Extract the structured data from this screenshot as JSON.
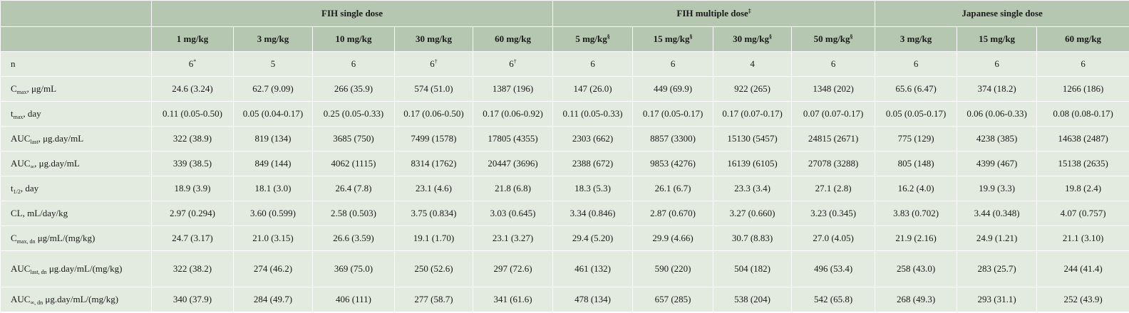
{
  "groups": [
    {
      "label": "FIH single dose",
      "sup": ""
    },
    {
      "label": "FIH multiple dose",
      "sup": "‡"
    },
    {
      "label": "Japanese single dose",
      "sup": ""
    }
  ],
  "doses": [
    {
      "label": "1 mg/kg",
      "sup": ""
    },
    {
      "label": "3 mg/kg",
      "sup": ""
    },
    {
      "label": "10 mg/kg",
      "sup": ""
    },
    {
      "label": "30 mg/kg",
      "sup": ""
    },
    {
      "label": "60 mg/kg",
      "sup": ""
    },
    {
      "label": "5 mg/kg",
      "sup": "§"
    },
    {
      "label": "15 mg/kg",
      "sup": "§"
    },
    {
      "label": "30 mg/kg",
      "sup": "§"
    },
    {
      "label": "50 mg/kg",
      "sup": "§"
    },
    {
      "label": "3 mg/kg",
      "sup": ""
    },
    {
      "label": "15 mg/kg",
      "sup": ""
    },
    {
      "label": "60 mg/kg",
      "sup": ""
    }
  ],
  "rows": [
    {
      "param": {
        "main": "n",
        "sub": "",
        "rest": ""
      },
      "cells": [
        {
          "v": "6",
          "sup": "*"
        },
        {
          "v": "5",
          "sup": ""
        },
        {
          "v": "6",
          "sup": ""
        },
        {
          "v": "6",
          "sup": "†"
        },
        {
          "v": "6",
          "sup": "†"
        },
        {
          "v": "6",
          "sup": ""
        },
        {
          "v": "6",
          "sup": ""
        },
        {
          "v": "4",
          "sup": ""
        },
        {
          "v": "6",
          "sup": ""
        },
        {
          "v": "6",
          "sup": ""
        },
        {
          "v": "6",
          "sup": ""
        },
        {
          "v": "6",
          "sup": ""
        }
      ]
    },
    {
      "param": {
        "main": "C",
        "sub": "max",
        "rest": ", μg/mL"
      },
      "cells": [
        {
          "v": "24.6 (3.24)",
          "sup": ""
        },
        {
          "v": "62.7 (9.09)",
          "sup": ""
        },
        {
          "v": "266 (35.9)",
          "sup": ""
        },
        {
          "v": "574 (51.0)",
          "sup": ""
        },
        {
          "v": "1387 (196)",
          "sup": ""
        },
        {
          "v": "147 (26.0)",
          "sup": ""
        },
        {
          "v": "449 (69.9)",
          "sup": ""
        },
        {
          "v": "922 (265)",
          "sup": ""
        },
        {
          "v": "1348 (202)",
          "sup": ""
        },
        {
          "v": "65.6 (6.47)",
          "sup": ""
        },
        {
          "v": "374 (18.2)",
          "sup": ""
        },
        {
          "v": "1266 (186)",
          "sup": ""
        }
      ]
    },
    {
      "param": {
        "main": "t",
        "sub": "max",
        "rest": ", day"
      },
      "cells": [
        {
          "v": "0.11 (0.05-0.50)",
          "sup": ""
        },
        {
          "v": "0.05 (0.04-0.17)",
          "sup": ""
        },
        {
          "v": "0.25 (0.05-0.33)",
          "sup": ""
        },
        {
          "v": "0.17 (0.06-0.50)",
          "sup": ""
        },
        {
          "v": "0.17 (0.06-0.92)",
          "sup": ""
        },
        {
          "v": "0.11 (0.05-0.33)",
          "sup": ""
        },
        {
          "v": "0.17 (0.05-0.17)",
          "sup": ""
        },
        {
          "v": "0.17 (0.07-0.17)",
          "sup": ""
        },
        {
          "v": "0.07 (0.07-0.17)",
          "sup": ""
        },
        {
          "v": "0.05 (0.05-0.17)",
          "sup": ""
        },
        {
          "v": "0.06 (0.06-0.33)",
          "sup": ""
        },
        {
          "v": "0.08 (0.08-0.17)",
          "sup": ""
        }
      ]
    },
    {
      "param": {
        "main": "AUC",
        "sub": "last",
        "rest": ", μg.day/mL"
      },
      "cells": [
        {
          "v": "322 (38.9)",
          "sup": ""
        },
        {
          "v": "819 (134)",
          "sup": ""
        },
        {
          "v": "3685 (750)",
          "sup": ""
        },
        {
          "v": "7499 (1578)",
          "sup": ""
        },
        {
          "v": "17805 (4355)",
          "sup": ""
        },
        {
          "v": "2303 (662)",
          "sup": ""
        },
        {
          "v": "8857 (3300)",
          "sup": ""
        },
        {
          "v": "15130 (5457)",
          "sup": ""
        },
        {
          "v": "24815 (2671)",
          "sup": ""
        },
        {
          "v": "775 (129)",
          "sup": ""
        },
        {
          "v": "4238 (385)",
          "sup": ""
        },
        {
          "v": "14638 (2487)",
          "sup": ""
        }
      ]
    },
    {
      "param": {
        "main": "AUC",
        "sub": "∞",
        "rest": ", μg.day/mL"
      },
      "cells": [
        {
          "v": "339 (38.5)",
          "sup": ""
        },
        {
          "v": "849 (144)",
          "sup": ""
        },
        {
          "v": "4062 (1115)",
          "sup": ""
        },
        {
          "v": "8314 (1762)",
          "sup": ""
        },
        {
          "v": "20447 (3696)",
          "sup": ""
        },
        {
          "v": "2388 (672)",
          "sup": ""
        },
        {
          "v": "9853 (4276)",
          "sup": ""
        },
        {
          "v": "16139 (6105)",
          "sup": ""
        },
        {
          "v": "27078 (3288)",
          "sup": ""
        },
        {
          "v": "805 (148)",
          "sup": ""
        },
        {
          "v": "4399 (467)",
          "sup": ""
        },
        {
          "v": "15138 (2635)",
          "sup": ""
        }
      ]
    },
    {
      "param": {
        "main": "t",
        "sub": "1/2",
        "rest": ", day"
      },
      "cells": [
        {
          "v": "18.9 (3.9)",
          "sup": ""
        },
        {
          "v": "18.1 (3.0)",
          "sup": ""
        },
        {
          "v": "26.4 (7.8)",
          "sup": ""
        },
        {
          "v": "23.1 (4.6)",
          "sup": ""
        },
        {
          "v": "21.8 (6.8)",
          "sup": ""
        },
        {
          "v": "18.3 (5.3)",
          "sup": ""
        },
        {
          "v": "26.1 (6.7)",
          "sup": ""
        },
        {
          "v": "23.3 (3.4)",
          "sup": ""
        },
        {
          "v": "27.1 (2.8)",
          "sup": ""
        },
        {
          "v": "16.2 (4.0)",
          "sup": ""
        },
        {
          "v": "19.9 (3.3)",
          "sup": ""
        },
        {
          "v": "19.8 (2.4)",
          "sup": ""
        }
      ]
    },
    {
      "param": {
        "main": "CL, mL/day/kg",
        "sub": "",
        "rest": ""
      },
      "cells": [
        {
          "v": "2.97 (0.294)",
          "sup": ""
        },
        {
          "v": "3.60 (0.599)",
          "sup": ""
        },
        {
          "v": "2.58 (0.503)",
          "sup": ""
        },
        {
          "v": "3.75 (0.834)",
          "sup": ""
        },
        {
          "v": "3.03 (0.645)",
          "sup": ""
        },
        {
          "v": "3.34 (0.846)",
          "sup": ""
        },
        {
          "v": "2.87 (0.670)",
          "sup": ""
        },
        {
          "v": "3.27 (0.660)",
          "sup": ""
        },
        {
          "v": "3.23 (0.345)",
          "sup": ""
        },
        {
          "v": "3.83 (0.702)",
          "sup": ""
        },
        {
          "v": "3.44 (0.348)",
          "sup": ""
        },
        {
          "v": "4.07 (0.757)",
          "sup": ""
        }
      ]
    },
    {
      "param": {
        "main": "C",
        "sub": "max, dn",
        "rest": " μg/mL/(mg/kg)"
      },
      "cells": [
        {
          "v": "24.7 (3.17)",
          "sup": ""
        },
        {
          "v": "21.0 (3.15)",
          "sup": ""
        },
        {
          "v": "26.6 (3.59)",
          "sup": ""
        },
        {
          "v": "19.1 (1.70)",
          "sup": ""
        },
        {
          "v": "23.1 (3.27)",
          "sup": ""
        },
        {
          "v": "29.4 (5.20)",
          "sup": ""
        },
        {
          "v": "29.9 (4.66)",
          "sup": ""
        },
        {
          "v": "30.7 (8.83)",
          "sup": ""
        },
        {
          "v": "27.0 (4.05)",
          "sup": ""
        },
        {
          "v": "21.9 (2.16)",
          "sup": ""
        },
        {
          "v": "24.9 (1.21)",
          "sup": ""
        },
        {
          "v": "21.1 (3.10)",
          "sup": ""
        }
      ]
    },
    {
      "param": {
        "main": "AUC",
        "sub": "last, dn",
        "rest": " μg.day/mL/(mg/kg)"
      },
      "cells": [
        {
          "v": "322 (38.2)",
          "sup": ""
        },
        {
          "v": "274 (46.2)",
          "sup": ""
        },
        {
          "v": "369 (75.0)",
          "sup": ""
        },
        {
          "v": "250 (52.6)",
          "sup": ""
        },
        {
          "v": "297 (72.6)",
          "sup": ""
        },
        {
          "v": "461 (132)",
          "sup": ""
        },
        {
          "v": "590 (220)",
          "sup": ""
        },
        {
          "v": "504 (182)",
          "sup": ""
        },
        {
          "v": "496 (53.4)",
          "sup": ""
        },
        {
          "v": "258 (43.0)",
          "sup": ""
        },
        {
          "v": "283 (25.7)",
          "sup": ""
        },
        {
          "v": "244 (41.4)",
          "sup": ""
        }
      ]
    },
    {
      "param": {
        "main": "AUC",
        "sub": "∞, dn",
        "rest": " μg.day/mL/(mg/kg)"
      },
      "cells": [
        {
          "v": "340 (37.9)",
          "sup": ""
        },
        {
          "v": "284 (49.7)",
          "sup": ""
        },
        {
          "v": "406 (111)",
          "sup": ""
        },
        {
          "v": "277 (58.7)",
          "sup": ""
        },
        {
          "v": "341 (61.6)",
          "sup": ""
        },
        {
          "v": "478 (134)",
          "sup": ""
        },
        {
          "v": "657 (285)",
          "sup": ""
        },
        {
          "v": "538 (204)",
          "sup": ""
        },
        {
          "v": "542 (65.8)",
          "sup": ""
        },
        {
          "v": "268 (49.3)",
          "sup": ""
        },
        {
          "v": "293 (31.1)",
          "sup": ""
        },
        {
          "v": "252 (43.9)",
          "sup": ""
        }
      ]
    }
  ]
}
